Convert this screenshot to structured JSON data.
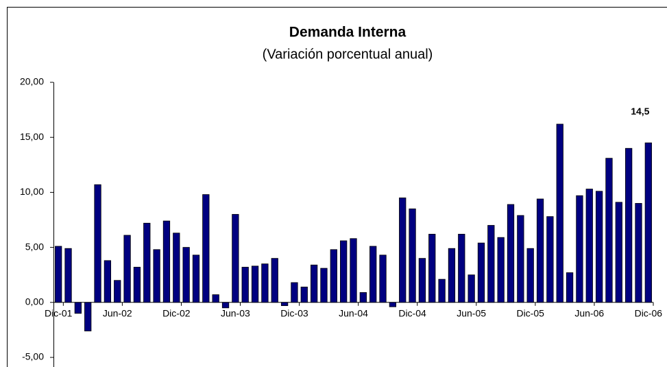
{
  "chart_data": {
    "type": "bar",
    "title": "Demanda Interna",
    "subtitle": "(Variación porcentual anual)",
    "categories": [
      "Dic-01",
      null,
      null,
      null,
      null,
      null,
      "Jun-02",
      null,
      null,
      null,
      null,
      null,
      "Dic-02",
      null,
      null,
      null,
      null,
      null,
      "Jun-03",
      null,
      null,
      null,
      null,
      null,
      "Dic-03",
      null,
      null,
      null,
      null,
      null,
      "Jun-04",
      null,
      null,
      null,
      null,
      null,
      "Dic-04",
      null,
      null,
      null,
      null,
      null,
      "Jun-05",
      null,
      null,
      null,
      null,
      null,
      "Dic-05",
      null,
      null,
      null,
      null,
      null,
      "Jun-06",
      null,
      null,
      null,
      null,
      null,
      "Dic-06"
    ],
    "values": [
      5.1,
      4.9,
      -1.0,
      -2.6,
      10.7,
      3.8,
      2.0,
      6.1,
      3.2,
      7.2,
      4.8,
      7.4,
      6.3,
      5.0,
      4.3,
      9.8,
      0.7,
      -0.5,
      8.0,
      3.2,
      3.3,
      3.5,
      4.0,
      -0.3,
      1.8,
      1.4,
      3.4,
      3.1,
      4.8,
      5.6,
      5.8,
      0.9,
      5.1,
      4.3,
      -0.4,
      9.5,
      8.5,
      4.0,
      6.2,
      2.1,
      4.9,
      6.2,
      2.5,
      5.4,
      7.0,
      5.9,
      8.9,
      7.9,
      4.9,
      9.4,
      7.8,
      16.2,
      2.7,
      9.7,
      10.3,
      10.1,
      13.1,
      9.1,
      14.0,
      9.0,
      14.5
    ],
    "value_labels": [
      null,
      null,
      null,
      null,
      null,
      null,
      null,
      null,
      null,
      null,
      null,
      null,
      null,
      null,
      null,
      null,
      null,
      null,
      null,
      null,
      null,
      null,
      null,
      null,
      null,
      null,
      null,
      null,
      null,
      null,
      null,
      null,
      null,
      null,
      null,
      null,
      null,
      null,
      null,
      null,
      null,
      null,
      null,
      null,
      null,
      null,
      null,
      null,
      null,
      null,
      null,
      null,
      null,
      null,
      null,
      null,
      null,
      null,
      null,
      null,
      "14,5"
    ],
    "color": "#000080",
    "ylim": [
      -5,
      20
    ],
    "yticks": [
      {
        "value": -5,
        "label": "-5,00"
      },
      {
        "value": 0,
        "label": "0,00"
      },
      {
        "value": 5,
        "label": "5,00"
      },
      {
        "value": 10,
        "label": "10,00"
      },
      {
        "value": 15,
        "label": "15,00"
      },
      {
        "value": 20,
        "label": "20,00"
      }
    ],
    "grid": false
  }
}
